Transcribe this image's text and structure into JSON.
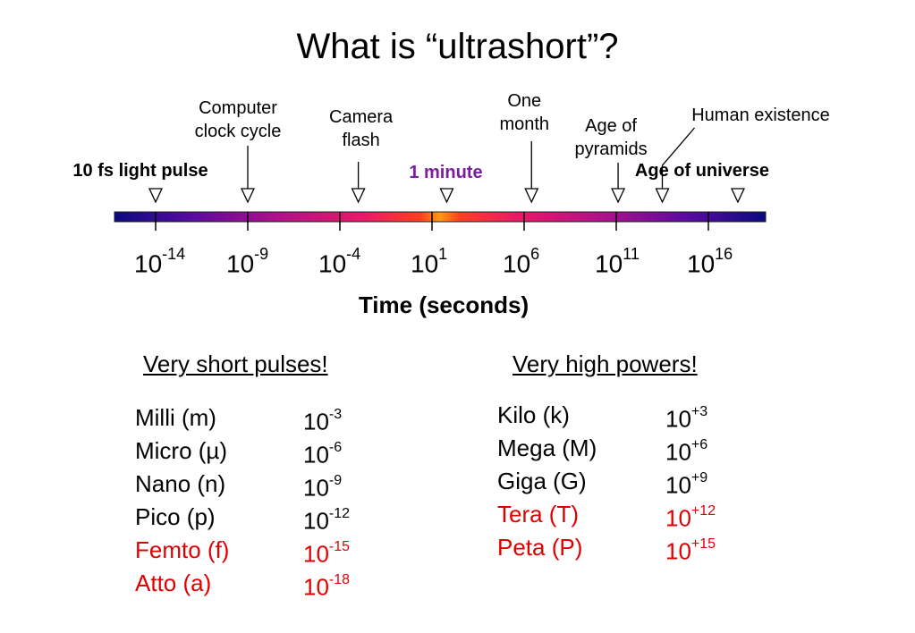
{
  "title": "What is “ultrashort”?",
  "timeline": {
    "axis_label": "Time (seconds)",
    "scale": "log10",
    "range_exponent": [
      -16,
      20
    ],
    "ticks": [
      {
        "base": "10",
        "exp": "-14"
      },
      {
        "base": "10",
        "exp": "-9"
      },
      {
        "base": "10",
        "exp": "-4"
      },
      {
        "base": "10",
        "exp": "1"
      },
      {
        "base": "10",
        "exp": "6"
      },
      {
        "base": "10",
        "exp": "11"
      },
      {
        "base": "10",
        "exp": "16"
      }
    ],
    "events": [
      {
        "label": "10 fs light pulse",
        "exponent": -14,
        "style": "bold"
      },
      {
        "label": "Computer clock cycle",
        "exponent": -9
      },
      {
        "label": "Camera flash",
        "exponent": -3
      },
      {
        "label": "1 minute",
        "exponent": 1.8,
        "style": "bold",
        "color": "#7a1e9e"
      },
      {
        "label": "One month",
        "exponent": 6.4
      },
      {
        "label": "Age of pyramids",
        "exponent": 11.1
      },
      {
        "label": "Human existence",
        "exponent": 13.5
      },
      {
        "label": "Age of universe",
        "exponent": 17.6,
        "style": "bold"
      }
    ]
  },
  "short_pulses": {
    "title": "Very short pulses!",
    "rows": [
      {
        "name": "Milli (m)",
        "base": "10",
        "exp": "-3",
        "highlight": false
      },
      {
        "name": "Micro (µ)",
        "base": "10",
        "exp": "-6",
        "highlight": false
      },
      {
        "name": "Nano (n)",
        "base": "10",
        "exp": "-9",
        "highlight": false
      },
      {
        "name": "Pico (p)",
        "base": "10",
        "exp": "-12",
        "highlight": false
      },
      {
        "name": "Femto (f)",
        "base": "10",
        "exp": "-15",
        "highlight": true
      },
      {
        "name": "Atto (a)",
        "base": "10",
        "exp": "-18",
        "highlight": true
      }
    ]
  },
  "high_powers": {
    "title": "Very high powers!",
    "rows": [
      {
        "name": "Kilo (k)",
        "base": "10",
        "exp": "+3",
        "highlight": false
      },
      {
        "name": "Mega (M)",
        "base": "10",
        "exp": "+6",
        "highlight": false
      },
      {
        "name": "Giga (G)",
        "base": "10",
        "exp": "+9",
        "highlight": false
      },
      {
        "name": "Tera (T)",
        "base": "10",
        "exp": "+12",
        "highlight": true
      },
      {
        "name": "Peta (P)",
        "base": "10",
        "exp": "+15",
        "highlight": true
      }
    ]
  },
  "colors": {
    "highlight": "#e00000",
    "minute": "#7a1e9e"
  }
}
